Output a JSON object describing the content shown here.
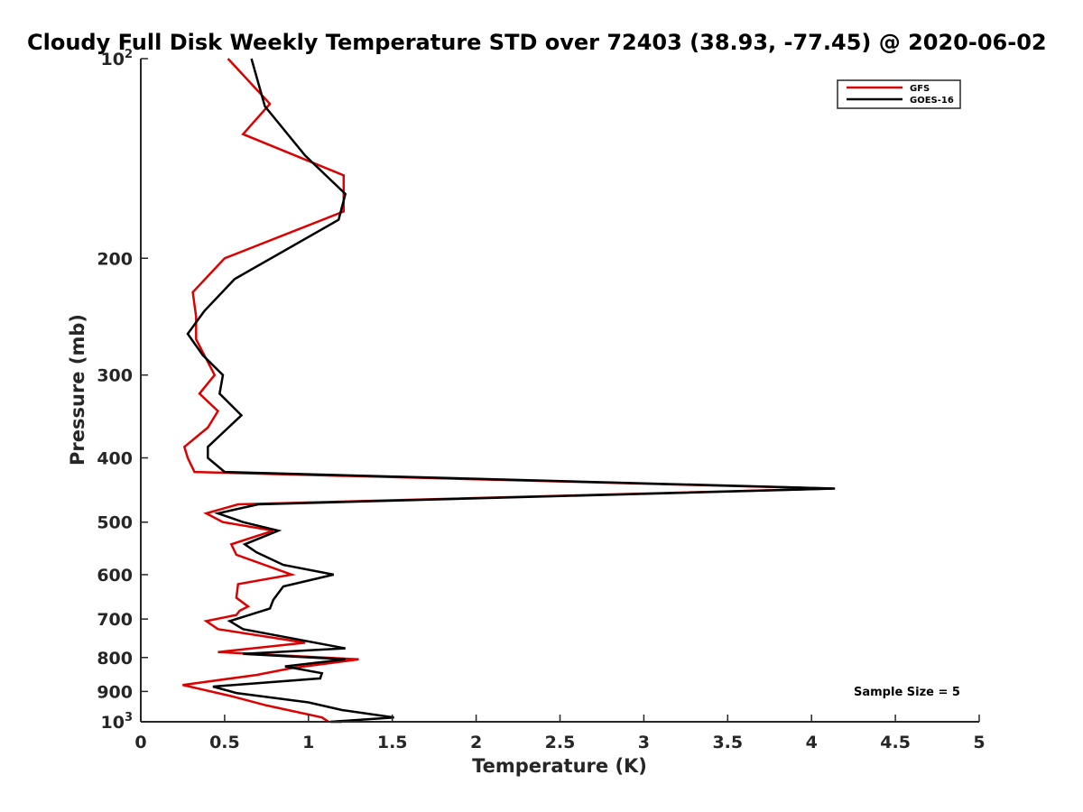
{
  "chart_data": {
    "type": "line",
    "title": "Cloudy Full Disk Weekly Temperature STD over 72403 (38.93, -77.45) @ 2020-06-02",
    "xlabel": "Temperature (K)",
    "ylabel": "Pressure (mb)",
    "xlim": [
      0,
      5
    ],
    "ylim": [
      100,
      1000
    ],
    "y_scale": "log",
    "y_reversed": true,
    "grid": false,
    "legend_position": "top-right",
    "x_ticks": [
      "0",
      "0.5",
      "1",
      "1.5",
      "2",
      "2.5",
      "3",
      "3.5",
      "4",
      "4.5",
      "5"
    ],
    "y_ticks": [
      {
        "value": 100,
        "base": "10",
        "exp": "2"
      },
      {
        "value": 200,
        "label": "200"
      },
      {
        "value": 300,
        "label": "300"
      },
      {
        "value": 400,
        "label": "400"
      },
      {
        "value": 500,
        "label": "500"
      },
      {
        "value": 600,
        "label": "600"
      },
      {
        "value": 700,
        "label": "700"
      },
      {
        "value": 800,
        "label": "800"
      },
      {
        "value": 900,
        "label": "900"
      },
      {
        "value": 1000,
        "base": "10",
        "exp": "3"
      }
    ],
    "annotation": "Sample Size = 5",
    "series": [
      {
        "name": "GFS",
        "color": "#dd0000",
        "points": [
          [
            0.52,
            100
          ],
          [
            0.77,
            117
          ],
          [
            0.61,
            130
          ],
          [
            1.21,
            150
          ],
          [
            1.21,
            170
          ],
          [
            0.5,
            200
          ],
          [
            0.31,
            225
          ],
          [
            0.33,
            245
          ],
          [
            0.33,
            265
          ],
          [
            0.44,
            300
          ],
          [
            0.35,
            320
          ],
          [
            0.46,
            340
          ],
          [
            0.4,
            360
          ],
          [
            0.26,
            385
          ],
          [
            0.28,
            400
          ],
          [
            0.32,
            420
          ],
          [
            4.12,
            445
          ],
          [
            0.58,
            470
          ],
          [
            0.39,
            485
          ],
          [
            0.49,
            500
          ],
          [
            0.79,
            515
          ],
          [
            0.54,
            540
          ],
          [
            0.57,
            560
          ],
          [
            0.9,
            600
          ],
          [
            0.58,
            620
          ],
          [
            0.57,
            650
          ],
          [
            0.64,
            670
          ],
          [
            0.59,
            680
          ],
          [
            0.57,
            690
          ],
          [
            0.39,
            705
          ],
          [
            0.46,
            725
          ],
          [
            0.98,
            760
          ],
          [
            0.46,
            785
          ],
          [
            1.3,
            805
          ],
          [
            0.9,
            830
          ],
          [
            0.69,
            850
          ],
          [
            0.25,
            880
          ],
          [
            0.54,
            915
          ],
          [
            0.75,
            945
          ],
          [
            1.08,
            985
          ],
          [
            1.12,
            1000
          ]
        ]
      },
      {
        "name": "GOES-16",
        "color": "#000000",
        "points": [
          [
            0.66,
            100
          ],
          [
            0.74,
            118
          ],
          [
            0.98,
            140
          ],
          [
            1.22,
            160
          ],
          [
            1.18,
            175
          ],
          [
            0.56,
            215
          ],
          [
            0.38,
            240
          ],
          [
            0.28,
            260
          ],
          [
            0.37,
            280
          ],
          [
            0.49,
            300
          ],
          [
            0.47,
            320
          ],
          [
            0.6,
            345
          ],
          [
            0.4,
            385
          ],
          [
            0.4,
            400
          ],
          [
            0.5,
            420
          ],
          [
            4.14,
            445
          ],
          [
            0.7,
            470
          ],
          [
            0.46,
            485
          ],
          [
            0.61,
            500
          ],
          [
            0.82,
            515
          ],
          [
            0.62,
            540
          ],
          [
            0.69,
            555
          ],
          [
            0.85,
            580
          ],
          [
            1.15,
            600
          ],
          [
            0.85,
            625
          ],
          [
            0.79,
            655
          ],
          [
            0.77,
            675
          ],
          [
            0.53,
            705
          ],
          [
            0.61,
            725
          ],
          [
            1.22,
            775
          ],
          [
            0.61,
            790
          ],
          [
            1.22,
            805
          ],
          [
            0.86,
            825
          ],
          [
            1.08,
            845
          ],
          [
            1.07,
            860
          ],
          [
            0.43,
            885
          ],
          [
            0.57,
            905
          ],
          [
            1.0,
            935
          ],
          [
            1.2,
            960
          ],
          [
            1.51,
            985
          ],
          [
            1.13,
            1000
          ],
          [
            1.2,
            1000
          ]
        ]
      }
    ]
  }
}
